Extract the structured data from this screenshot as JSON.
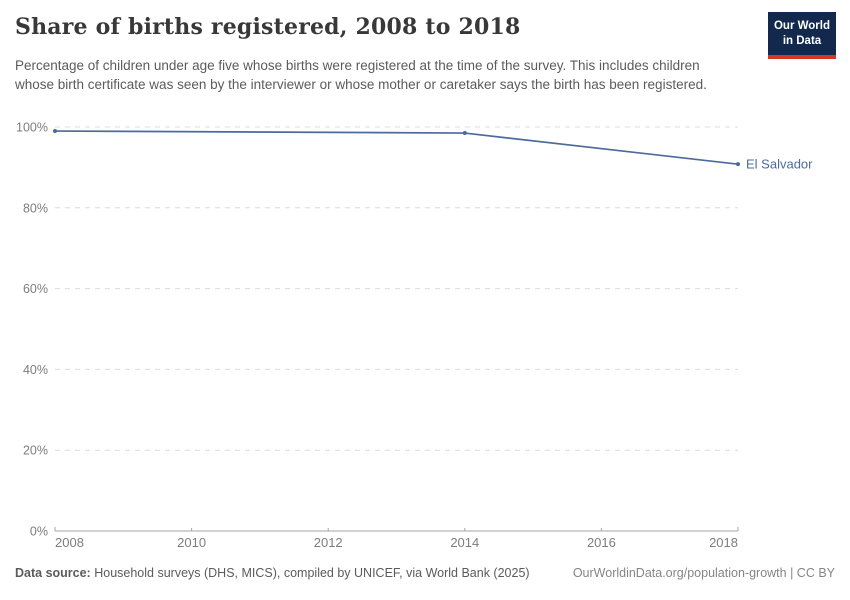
{
  "header": {
    "title": "Share of births registered, 2008 to 2018",
    "subtitle": "Percentage of children under age five whose births were registered at the time of the survey. This includes children whose birth certificate was seen by the interviewer or whose mother or caretaker says the birth has been registered."
  },
  "logo": {
    "line1": "Our World",
    "line2": "in Data"
  },
  "chart_data": {
    "type": "line",
    "title": "Share of births registered, 2008 to 2018",
    "xlabel": "",
    "ylabel": "",
    "xlim": [
      2008,
      2018
    ],
    "ylim": [
      0,
      100
    ],
    "xticks": [
      2008,
      2010,
      2012,
      2014,
      2016,
      2018
    ],
    "yticks": [
      0,
      20,
      40,
      60,
      80,
      100
    ],
    "ytick_suffix": "%",
    "grid": "horizontal-dashed",
    "legend_position": "end-of-line label",
    "series": [
      {
        "name": "El Salvador",
        "color": "#4c6a9c",
        "x": [
          2008,
          2014,
          2018
        ],
        "values": [
          99,
          98.5,
          90.8
        ]
      }
    ]
  },
  "footer": {
    "datasource_label": "Data source:",
    "datasource_text": "Household surveys (DHS, MICS), compiled by UNICEF, via World Bank (2025)",
    "credit": "OurWorldinData.org/population-growth | CC BY"
  },
  "colors": {
    "accent_line": "#4c6a9c",
    "grid": "#dcdcdc",
    "axis": "#a5a5a5",
    "tick_label": "#7d7d7d",
    "logo_navy": "#12294d",
    "logo_red": "#d8352a"
  }
}
